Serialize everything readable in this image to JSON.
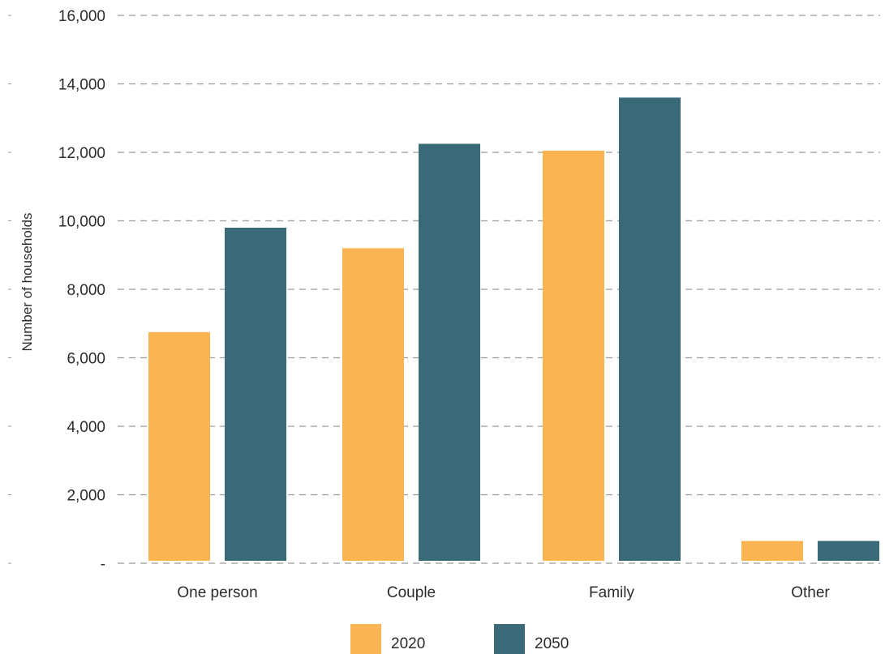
{
  "chart_data": {
    "type": "bar",
    "categories": [
      "One person",
      "Couple",
      "Family",
      "Other"
    ],
    "series": [
      {
        "name": "2020",
        "color": "#fbb452",
        "values": [
          6750,
          9200,
          12050,
          650
        ]
      },
      {
        "name": "2050",
        "color": "#3a6a77",
        "values": [
          9800,
          12250,
          13600,
          650
        ]
      }
    ],
    "ylabel": "Number of households",
    "xlabel": "",
    "ylim": [
      0,
      16000
    ],
    "yticks": [
      0,
      2000,
      4000,
      6000,
      8000,
      10000,
      12000,
      14000,
      16000
    ],
    "ytick_labels": [
      "-",
      "2,000",
      "4,000",
      "6,000",
      "8,000",
      "10,000",
      "12,000",
      "14,000",
      "16,000"
    ],
    "grid": true,
    "legend_position": "bottom-center"
  }
}
